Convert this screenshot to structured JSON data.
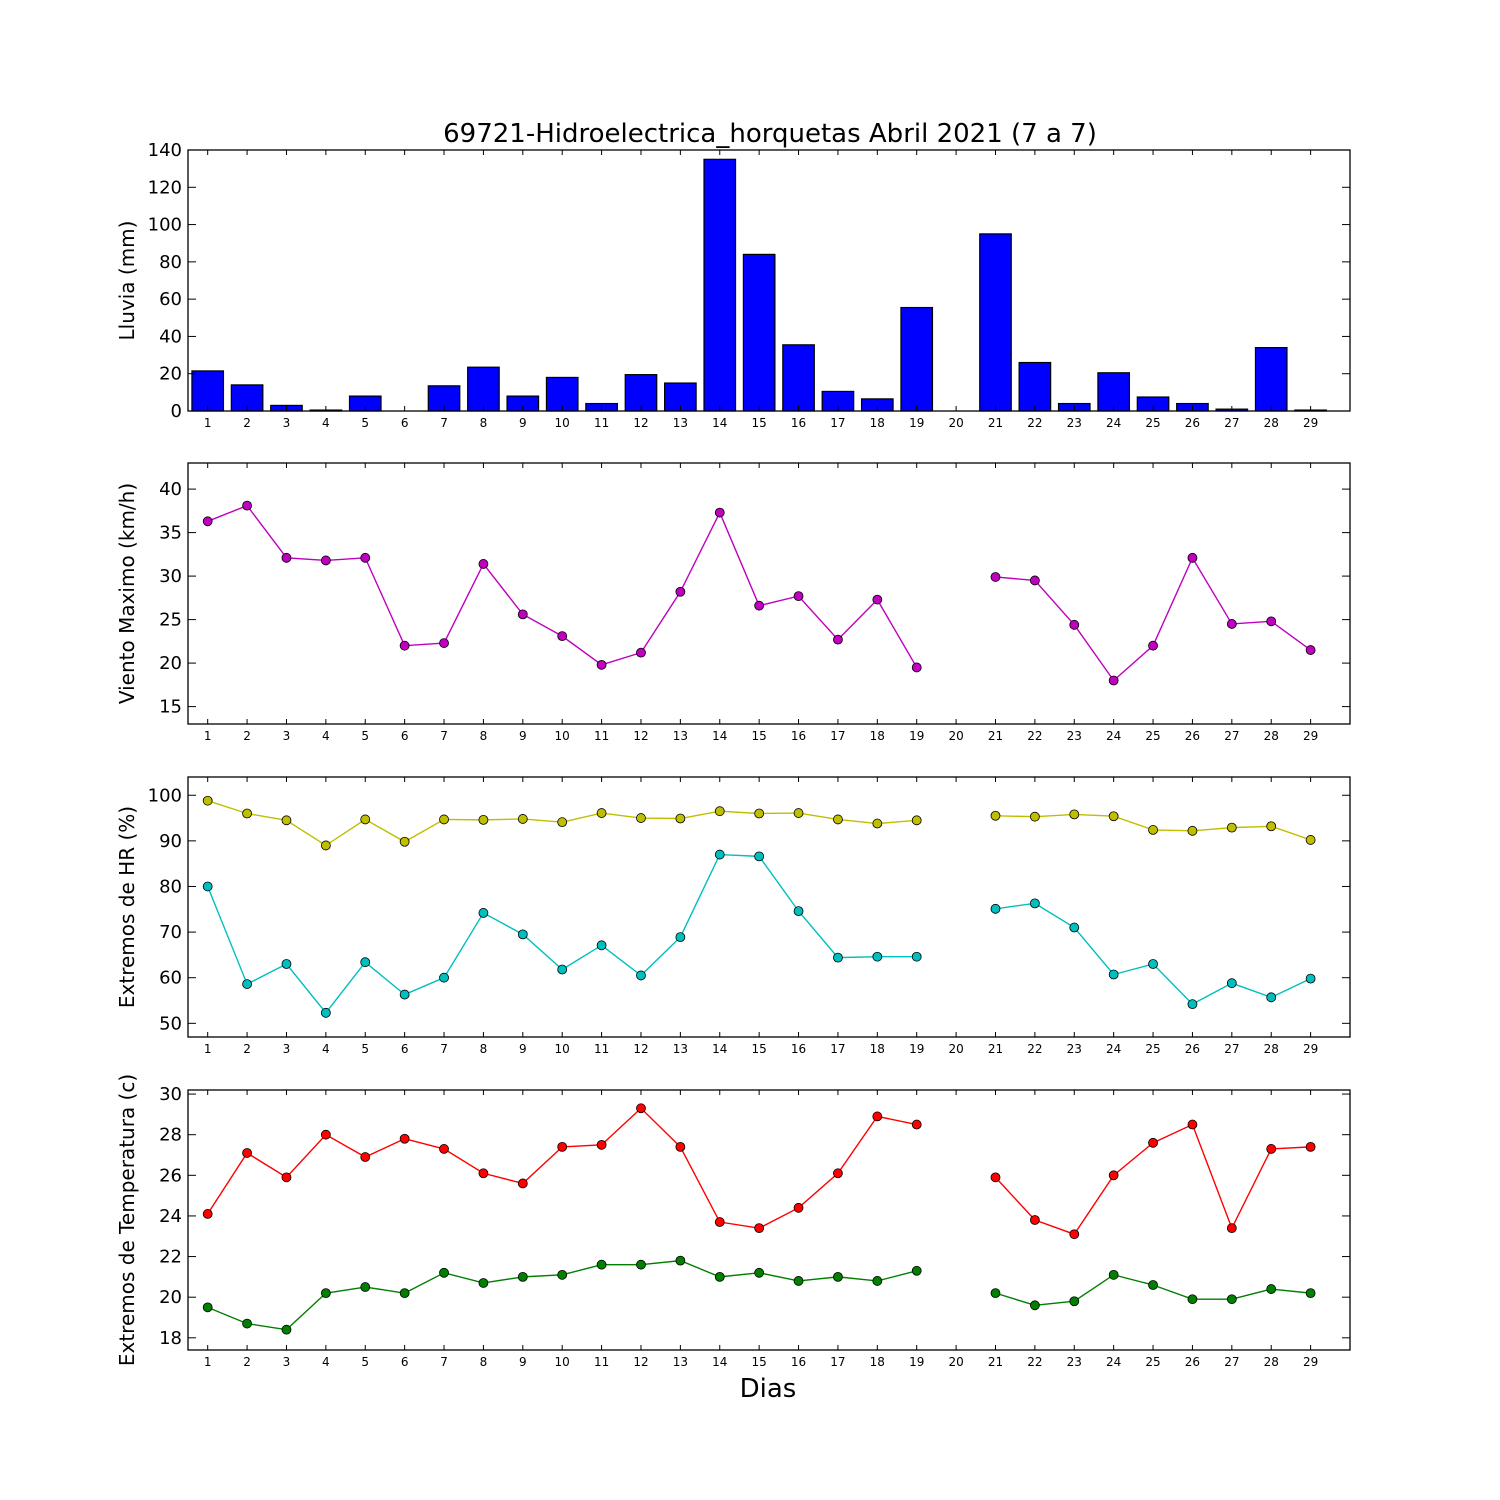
{
  "figure": {
    "title": "69721-Hidroelectrica_horquetas Abril 2021  (7 a 7)",
    "xlabel": "Dias"
  },
  "chart_data": [
    {
      "type": "bar",
      "ylabel": "Lluvia (mm)",
      "x": [
        1,
        2,
        3,
        4,
        5,
        6,
        7,
        8,
        9,
        10,
        11,
        12,
        13,
        14,
        15,
        16,
        17,
        18,
        19,
        20,
        21,
        22,
        23,
        24,
        25,
        26,
        27,
        28,
        29
      ],
      "ylim": [
        0,
        140
      ],
      "yticks": [
        0,
        20,
        40,
        60,
        80,
        100,
        120,
        140
      ],
      "grid": false,
      "series": [
        {
          "color": "#0000ff",
          "values": [
            21.5,
            14,
            3,
            0.5,
            8,
            0,
            13.5,
            23.5,
            8,
            18,
            4,
            19.5,
            15,
            135,
            84,
            35.5,
            10.5,
            6.5,
            55.5,
            0,
            95,
            26,
            4,
            20.5,
            7.5,
            4,
            1,
            34,
            0.5
          ]
        }
      ]
    },
    {
      "type": "line",
      "ylabel": "Viento Maximo (km/h)",
      "x": [
        1,
        2,
        3,
        4,
        5,
        6,
        7,
        8,
        9,
        10,
        11,
        12,
        13,
        14,
        15,
        16,
        17,
        18,
        19,
        20,
        21,
        22,
        23,
        24,
        25,
        26,
        27,
        28,
        29
      ],
      "ylim": [
        13,
        43
      ],
      "yticks": [
        15,
        20,
        25,
        30,
        35,
        40
      ],
      "grid": false,
      "series": [
        {
          "color": "#bf00bf",
          "values": [
            36.3,
            38.1,
            32.1,
            31.8,
            32.1,
            22,
            22.3,
            31.4,
            25.6,
            23.1,
            19.8,
            21.2,
            28.2,
            37.3,
            26.6,
            27.7,
            22.7,
            27.3,
            19.5,
            null,
            29.9,
            29.5,
            24.4,
            18,
            22,
            32.1,
            24.5,
            24.8,
            21.5
          ]
        }
      ]
    },
    {
      "type": "line",
      "ylabel": "Extremos de HR (%)",
      "x": [
        1,
        2,
        3,
        4,
        5,
        6,
        7,
        8,
        9,
        10,
        11,
        12,
        13,
        14,
        15,
        16,
        17,
        18,
        19,
        20,
        21,
        22,
        23,
        24,
        25,
        26,
        27,
        28,
        29
      ],
      "ylim": [
        47,
        104
      ],
      "yticks": [
        50,
        60,
        70,
        80,
        90,
        100
      ],
      "grid": false,
      "series": [
        {
          "color": "#bfbf00",
          "values": [
            98.8,
            96,
            94.5,
            89,
            94.7,
            89.8,
            94.7,
            94.6,
            94.8,
            94.1,
            96.1,
            95,
            94.9,
            96.5,
            96,
            96.1,
            94.7,
            93.8,
            94.5,
            null,
            95.5,
            95.3,
            95.8,
            95.4,
            92.4,
            92.2,
            92.9,
            93.2,
            90.2
          ]
        },
        {
          "color": "#00bfbf",
          "values": [
            80,
            58.6,
            63,
            52.3,
            63.4,
            56.3,
            60,
            74.2,
            69.5,
            61.8,
            67.1,
            60.5,
            68.9,
            87,
            86.6,
            74.6,
            64.4,
            64.6,
            64.6,
            null,
            75.1,
            76.3,
            71,
            60.7,
            63,
            54.2,
            58.8,
            55.7,
            59.8
          ]
        }
      ]
    },
    {
      "type": "line",
      "ylabel": "Extremos de Temperatura (c)",
      "x": [
        1,
        2,
        3,
        4,
        5,
        6,
        7,
        8,
        9,
        10,
        11,
        12,
        13,
        14,
        15,
        16,
        17,
        18,
        19,
        20,
        21,
        22,
        23,
        24,
        25,
        26,
        27,
        28,
        29
      ],
      "ylim": [
        17.4,
        30.2
      ],
      "yticks": [
        18,
        20,
        22,
        24,
        26,
        28,
        30
      ],
      "grid": false,
      "series": [
        {
          "color": "#ff0000",
          "values": [
            24.1,
            27.1,
            25.9,
            28,
            26.9,
            27.8,
            27.3,
            26.1,
            25.6,
            27.4,
            27.5,
            29.3,
            27.4,
            23.7,
            23.4,
            24.4,
            26.1,
            28.9,
            28.5,
            null,
            25.9,
            23.8,
            23.1,
            26,
            27.6,
            28.5,
            23.4,
            27.3,
            27.4
          ]
        },
        {
          "color": "#007f00",
          "values": [
            19.5,
            18.7,
            18.4,
            20.2,
            20.5,
            20.2,
            21.2,
            20.7,
            21,
            21.1,
            21.6,
            21.6,
            21.8,
            21,
            21.2,
            20.8,
            21,
            20.8,
            21.3,
            null,
            20.2,
            19.6,
            19.8,
            21.1,
            20.6,
            19.9,
            19.9,
            20.4,
            20.2
          ]
        }
      ]
    }
  ]
}
